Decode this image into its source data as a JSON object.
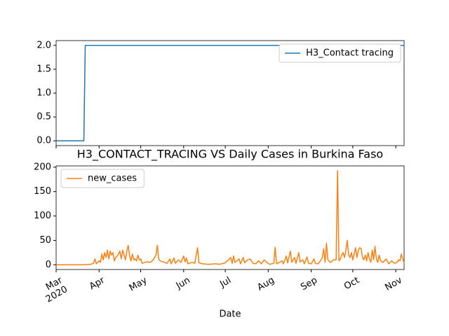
{
  "chart_data": [
    {
      "type": "line",
      "x": [
        0,
        20,
        21,
        251
      ],
      "series": [
        {
          "name": "H3_Contact tracing",
          "color": "#1f77b4",
          "values": [
            0,
            0,
            2,
            2
          ]
        }
      ],
      "xlim": [
        0,
        251
      ],
      "xticks": [
        0,
        31,
        61,
        92,
        122,
        153,
        184,
        214,
        245
      ],
      "ylim": [
        -0.1,
        2.1
      ],
      "yticks": [
        {
          "value": 0,
          "label": "0.0"
        },
        0.5,
        {
          "value": 1,
          "label": "1.0"
        },
        1.5,
        {
          "value": 2,
          "label": "2.0"
        }
      ],
      "legend": "upper right"
    },
    {
      "type": "line",
      "title": "H3_CONTACT_TRACING VS Daily Cases in Burkina Faso",
      "xlabel": "Date",
      "x": [
        0,
        10,
        20,
        25,
        27,
        28,
        29,
        31,
        32,
        33,
        34,
        35,
        36,
        37,
        38,
        39,
        40,
        41,
        42,
        43,
        44,
        45,
        46,
        47,
        48,
        49,
        50,
        51,
        52,
        53,
        54,
        55,
        56,
        57,
        58,
        59,
        60,
        61,
        62,
        64,
        66,
        68,
        70,
        71,
        72,
        73,
        74,
        75,
        77,
        80,
        82,
        83,
        85,
        86,
        88,
        90,
        92,
        93,
        94,
        95,
        98,
        100,
        102,
        103,
        106,
        110,
        115,
        118,
        122,
        125,
        126,
        127,
        128,
        129,
        132,
        133,
        135,
        136,
        138,
        140,
        142,
        144,
        146,
        148,
        150,
        152,
        154,
        157,
        158,
        159,
        161,
        163,
        164,
        166,
        167,
        169,
        170,
        172,
        173,
        175,
        176,
        178,
        179,
        181,
        182,
        184,
        186,
        187,
        189,
        191,
        192,
        193,
        194,
        195,
        196,
        198,
        200,
        202,
        203,
        204,
        205,
        206,
        207,
        208,
        209,
        210,
        211,
        212,
        213,
        214,
        216,
        217,
        218,
        219,
        220,
        221,
        222,
        223,
        224,
        225,
        226,
        227,
        228,
        229,
        230,
        231,
        232,
        233,
        234,
        236,
        238,
        240,
        242,
        244,
        246,
        247,
        248,
        249,
        251
      ],
      "series": [
        {
          "name": "new_cases",
          "color": "#ff7f0e",
          "values": [
            0,
            0,
            0,
            1,
            3,
            12,
            2,
            8,
            5,
            22,
            10,
            25,
            15,
            30,
            12,
            28,
            20,
            25,
            8,
            15,
            18,
            22,
            28,
            12,
            30,
            20,
            10,
            28,
            40,
            18,
            8,
            22,
            10,
            12,
            8,
            20,
            10,
            12,
            3,
            5,
            6,
            5,
            10,
            15,
            20,
            40,
            12,
            8,
            6,
            3,
            12,
            2,
            14,
            3,
            10,
            5,
            18,
            6,
            14,
            2,
            5,
            3,
            35,
            4,
            2,
            1,
            2,
            1,
            4,
            12,
            15,
            3,
            18,
            5,
            12,
            2,
            15,
            4,
            10,
            12,
            3,
            2,
            8,
            2,
            10,
            5,
            1,
            3,
            36,
            2,
            5,
            8,
            2,
            18,
            4,
            28,
            5,
            15,
            3,
            25,
            6,
            10,
            2,
            16,
            3,
            2,
            12,
            3,
            2,
            10,
            15,
            33,
            5,
            44,
            10,
            5,
            10,
            10,
            193,
            8,
            12,
            20,
            25,
            15,
            30,
            50,
            20,
            15,
            25,
            10,
            35,
            15,
            30,
            35,
            33,
            15,
            10,
            20,
            8,
            25,
            12,
            5,
            30,
            10,
            38,
            12,
            5,
            20,
            8,
            5,
            12,
            2,
            8,
            3,
            5,
            10,
            8,
            22,
            3
          ]
        }
      ],
      "xlim": [
        0,
        251
      ],
      "xticks": [
        {
          "value": 0,
          "label": "Mar\n2020"
        },
        {
          "value": 31,
          "label": "Apr"
        },
        {
          "value": 61,
          "label": "May"
        },
        {
          "value": 92,
          "label": "Jun"
        },
        {
          "value": 122,
          "label": "Jul"
        },
        {
          "value": 153,
          "label": "Aug"
        },
        {
          "value": 184,
          "label": "Sep"
        },
        {
          "value": 214,
          "label": "Oct"
        },
        {
          "value": 245,
          "label": "Nov"
        }
      ],
      "ylim": [
        -9.65,
        202.65
      ],
      "yticks": [
        0,
        50,
        100,
        150,
        200
      ],
      "legend": "upper left"
    }
  ]
}
